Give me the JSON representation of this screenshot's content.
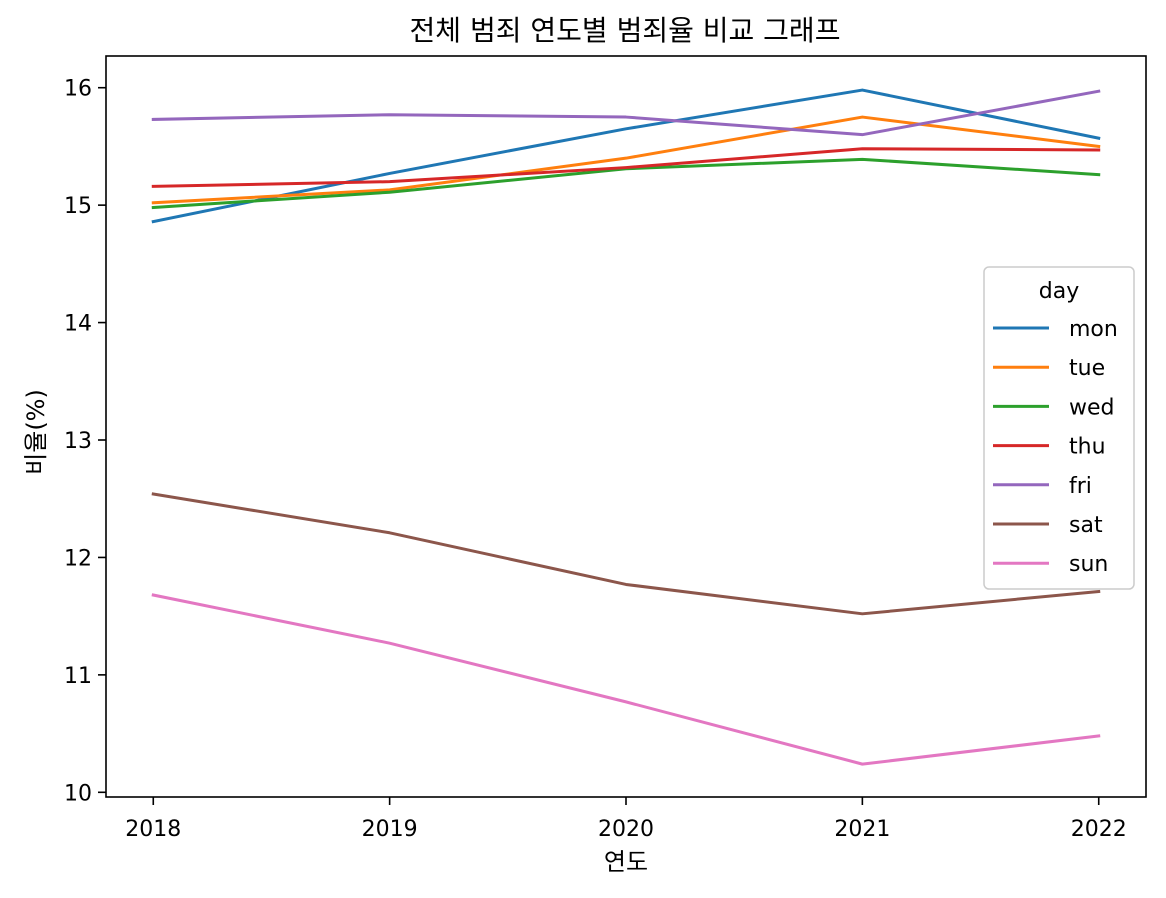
{
  "chart_data": {
    "type": "line",
    "title": "전체 범죄 연도별 범죄율 비교 그래프",
    "xlabel": "연도",
    "ylabel": "비율(%)",
    "x": [
      2018,
      2019,
      2020,
      2021,
      2022
    ],
    "x_tick_labels": [
      "2018",
      "2019",
      "2020",
      "2021",
      "2022"
    ],
    "y_ticks": [
      10,
      11,
      12,
      13,
      14,
      15,
      16
    ],
    "y_tick_labels": [
      "10",
      "11",
      "12",
      "13",
      "14",
      "15",
      "16"
    ],
    "ylim": [
      9.96,
      16.27
    ],
    "xlim": [
      2017.8,
      2022.2
    ],
    "grid": false,
    "legend": {
      "title": "day",
      "placement": "center-right"
    },
    "series": [
      {
        "name": "mon",
        "color": "#1f77b4",
        "values": [
          14.86,
          15.27,
          15.65,
          15.98,
          15.57
        ]
      },
      {
        "name": "tue",
        "color": "#ff7f0e",
        "values": [
          15.02,
          15.13,
          15.4,
          15.75,
          15.5
        ]
      },
      {
        "name": "wed",
        "color": "#2ca02c",
        "values": [
          14.98,
          15.11,
          15.31,
          15.39,
          15.26
        ]
      },
      {
        "name": "thu",
        "color": "#d62728",
        "values": [
          15.16,
          15.2,
          15.32,
          15.48,
          15.47
        ]
      },
      {
        "name": "fri",
        "color": "#9467bd",
        "values": [
          15.73,
          15.77,
          15.75,
          15.6,
          15.97
        ]
      },
      {
        "name": "sat",
        "color": "#8c564b",
        "values": [
          12.54,
          12.21,
          11.77,
          11.52,
          11.71
        ]
      },
      {
        "name": "sun",
        "color": "#e377c2",
        "values": [
          11.68,
          11.27,
          10.77,
          10.24,
          10.48
        ]
      }
    ]
  }
}
